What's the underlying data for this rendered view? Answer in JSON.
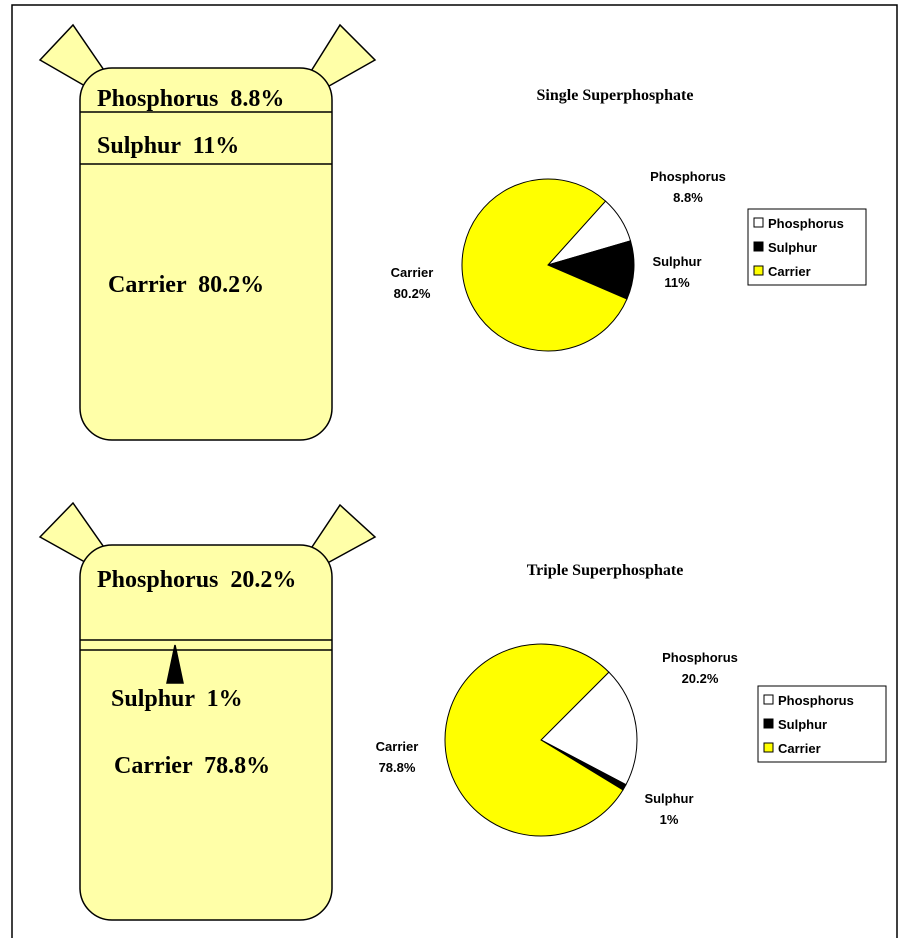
{
  "bags": [
    {
      "labels": [
        "Phosphorus  8.8%",
        "Sulphur  11%",
        "Carrier  80.2%"
      ]
    },
    {
      "labels": [
        "Phosphorus  20.2%",
        "Sulphur  1%",
        "Carrier  78.8%"
      ]
    }
  ],
  "chart_data": [
    {
      "type": "pie",
      "title": "Single Superphosphate",
      "categories": [
        "Phosphorus",
        "Sulphur",
        "Carrier"
      ],
      "values": [
        8.8,
        11,
        80.2
      ],
      "value_labels": [
        "8.8%",
        "11%",
        "80.2%"
      ],
      "colors": [
        "#ffffff",
        "#000000",
        "#ffff00"
      ],
      "legend": "right"
    },
    {
      "type": "pie",
      "title": "Triple Superphosphate",
      "categories": [
        "Phosphorus",
        "Sulphur",
        "Carrier"
      ],
      "values": [
        20.2,
        1,
        78.8
      ],
      "value_labels": [
        "20.2%",
        "1%",
        "78.8%"
      ],
      "colors": [
        "#ffffff",
        "#000000",
        "#ffff00"
      ],
      "legend": "right"
    }
  ]
}
